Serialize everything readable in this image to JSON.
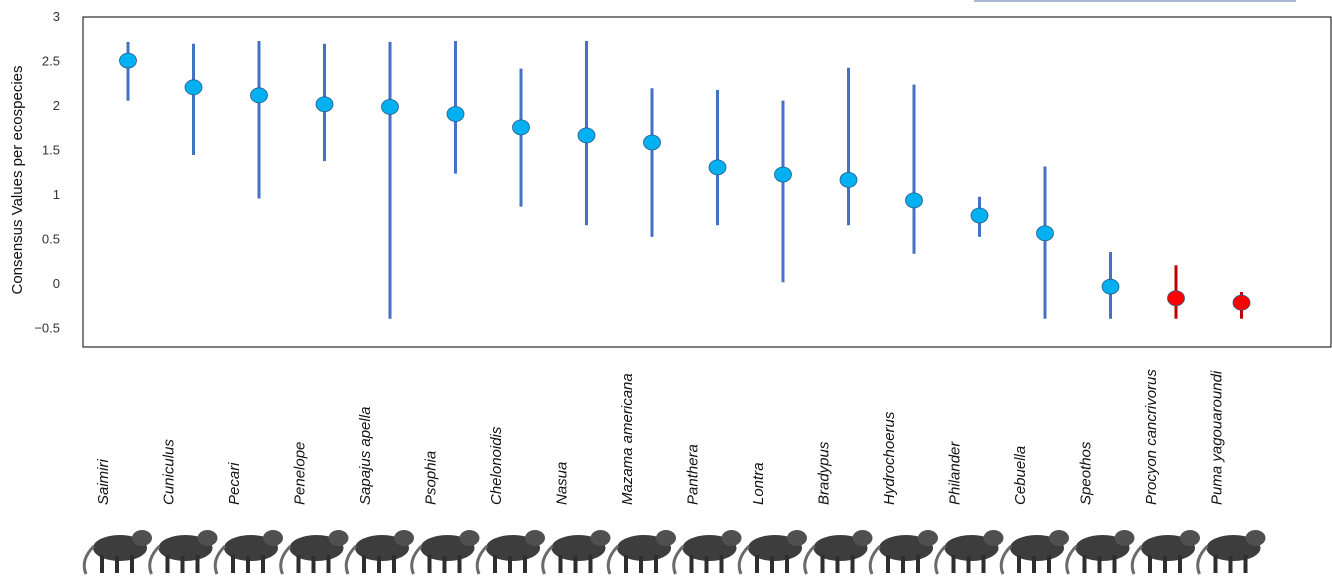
{
  "chart_data": {
    "type": "scatter",
    "title": "",
    "xlabel": "",
    "ylabel": "Consensus Values per ecospecies",
    "ylim": [
      -0.7,
      3.0
    ],
    "yticks": [
      3,
      2.5,
      2,
      1.5,
      1,
      0.5,
      0,
      -0.5
    ],
    "ytick_labels": [
      "3",
      "2.5",
      "2",
      "1.5",
      "1",
      "0.5",
      "0",
      "−0.5"
    ],
    "grid": false,
    "categories": [
      "Saimiri",
      "Cuniculus",
      "Pecari",
      "Penelope",
      "Sapajus apella",
      "Psophia",
      "Chelonoidis",
      "Nasua",
      "Mazama americana",
      "Panthera",
      "Lontra",
      "Bradypus",
      "Hydrochoerus",
      "Philander",
      "Cebuella",
      "Speothos",
      "Procyon cancrivorus",
      "Puma yagouaroundi"
    ],
    "series": [
      {
        "values": [
          2.51,
          2.21,
          2.12,
          2.02,
          1.99,
          1.91,
          1.76,
          1.67,
          1.59,
          1.31,
          1.23,
          1.17,
          0.94,
          0.77,
          0.57,
          -0.03,
          -0.16,
          -0.21
        ],
        "lower": [
          2.06,
          1.45,
          0.96,
          1.38,
          -0.39,
          1.24,
          0.87,
          0.66,
          0.53,
          0.66,
          0.02,
          0.66,
          0.34,
          0.53,
          -0.39,
          -0.39,
          -0.39,
          -0.39
        ],
        "upper": [
          2.72,
          2.7,
          2.73,
          2.7,
          2.72,
          2.73,
          2.42,
          2.73,
          2.2,
          2.18,
          2.06,
          2.43,
          2.24,
          0.98,
          1.32,
          0.36,
          0.21,
          -0.09
        ],
        "colors": [
          "#00b0f0",
          "#00b0f0",
          "#00b0f0",
          "#00b0f0",
          "#00b0f0",
          "#00b0f0",
          "#00b0f0",
          "#00b0f0",
          "#00b0f0",
          "#00b0f0",
          "#00b0f0",
          "#00b0f0",
          "#00b0f0",
          "#00b0f0",
          "#00b0f0",
          "#00b0f0",
          "#ff0000",
          "#ff0000"
        ],
        "bar_colors": [
          "#4472c4",
          "#4472c4",
          "#4472c4",
          "#4472c4",
          "#4472c4",
          "#4472c4",
          "#4472c4",
          "#4472c4",
          "#4472c4",
          "#4472c4",
          "#4472c4",
          "#4472c4",
          "#4472c4",
          "#4472c4",
          "#4472c4",
          "#4472c4",
          "#c00000",
          "#c00000"
        ]
      }
    ]
  },
  "species_images": [
    "squirrel-monkey",
    "paca",
    "peccary",
    "guan-bird",
    "capuchin-monkey",
    "trumpeter-bird",
    "tortoise",
    "coati",
    "brocket-deer",
    "jaguar",
    "otter",
    "sloth",
    "capybara",
    "opossum",
    "marmoset",
    "bush-dog",
    "raccoon",
    "jaguarundi"
  ]
}
